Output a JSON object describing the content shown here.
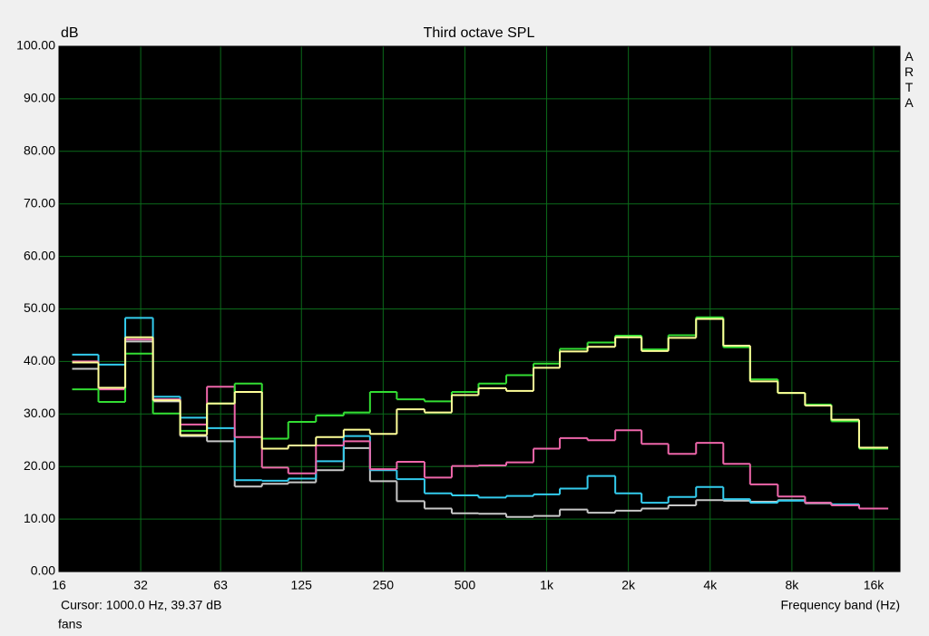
{
  "chart_data": {
    "type": "step",
    "title": "Third octave SPL",
    "y_unit_label": "dB",
    "brand_label": "ARTA",
    "x_axis_label": "Frequency band (Hz)",
    "cursor_text": "Cursor:  1000.0 Hz, 39.37 dB",
    "footer_text": "fans",
    "log_x": true,
    "grid": true,
    "background": "#000000",
    "grid_color": "#0b6b1a",
    "xlim": [
      16,
      20000
    ],
    "ylim": [
      0,
      100
    ],
    "xticks": [
      16,
      32,
      63,
      125,
      250,
      500,
      {
        "value": 1000,
        "label": "1k"
      },
      {
        "value": 2000,
        "label": "2k"
      },
      {
        "value": 4000,
        "label": "4k"
      },
      {
        "value": 8000,
        "label": "8k"
      },
      {
        "value": 16000,
        "label": "16k"
      }
    ],
    "yticks": [
      {
        "value": 0,
        "label": "0.00"
      },
      {
        "value": 10,
        "label": "10.00"
      },
      {
        "value": 20,
        "label": "20.00"
      },
      {
        "value": 30,
        "label": "30.00"
      },
      {
        "value": 40,
        "label": "40.00"
      },
      {
        "value": 50,
        "label": "50.00"
      },
      {
        "value": 60,
        "label": "60.00"
      },
      {
        "value": 70,
        "label": "70.00"
      },
      {
        "value": 80,
        "label": "80.00"
      },
      {
        "value": 90,
        "label": "90.00"
      },
      {
        "value": 100,
        "label": "100.00"
      }
    ],
    "x": [
      20,
      25,
      31.5,
      40,
      50,
      63,
      80,
      100,
      125,
      160,
      200,
      250,
      315,
      400,
      500,
      630,
      800,
      1000,
      1250,
      1600,
      2000,
      2500,
      3150,
      4000,
      5000,
      6300,
      8000,
      10000,
      12500,
      16000
    ],
    "series": [
      {
        "color": "#c8c8c8",
        "values": [
          38.6,
          34.9,
          43.8,
          32.4,
          25.8,
          24.8,
          16.2,
          16.7,
          17.0,
          19.3,
          23.5,
          17.2,
          13.4,
          12.0,
          11.1,
          11.0,
          10.4,
          10.6,
          11.8,
          11.2,
          11.6,
          12.0,
          12.6,
          13.6,
          13.5,
          13.3,
          13.6,
          13.0,
          12.6,
          12.0
        ]
      },
      {
        "color": "#33ccee",
        "values": [
          41.3,
          39.4,
          48.3,
          33.3,
          29.3,
          27.3,
          17.4,
          17.3,
          17.7,
          21.0,
          25.8,
          19.3,
          17.6,
          14.9,
          14.5,
          14.1,
          14.4,
          14.7,
          15.8,
          18.2,
          14.9,
          13.1,
          14.2,
          16.1,
          13.8,
          13.1,
          13.5,
          13.1,
          12.8,
          12.0
        ]
      },
      {
        "color": "#ee66aa",
        "values": [
          40.0,
          34.7,
          44.2,
          32.8,
          28.0,
          35.2,
          25.6,
          19.8,
          18.7,
          24.0,
          24.8,
          19.5,
          20.9,
          17.9,
          20.1,
          20.2,
          20.8,
          23.4,
          25.4,
          25.0,
          26.9,
          24.3,
          22.4,
          24.5,
          20.5,
          16.6,
          14.3,
          13.1,
          12.6,
          12.0
        ]
      },
      {
        "color": "#33dd33",
        "values": [
          34.7,
          32.3,
          41.5,
          30.1,
          26.8,
          32.0,
          35.8,
          25.3,
          28.5,
          29.7,
          30.3,
          34.2,
          32.8,
          32.4,
          34.2,
          35.8,
          37.4,
          39.6,
          42.4,
          43.6,
          44.9,
          42.3,
          45.0,
          48.4,
          42.7,
          36.6,
          34.0,
          31.8,
          28.6,
          23.4
        ]
      },
      {
        "color": "#ffff99",
        "values": [
          39.8,
          35.0,
          44.6,
          32.6,
          26.0,
          32.0,
          34.2,
          23.4,
          24.0,
          25.6,
          27.0,
          26.2,
          30.9,
          30.3,
          33.6,
          34.9,
          34.4,
          38.8,
          41.9,
          42.8,
          44.6,
          42.0,
          44.5,
          48.1,
          43.0,
          36.2,
          34.0,
          31.6,
          28.9,
          23.6
        ]
      }
    ]
  }
}
